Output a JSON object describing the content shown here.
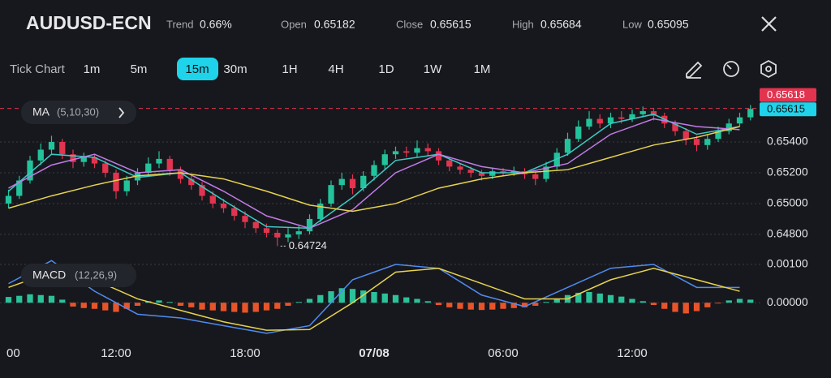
{
  "header": {
    "symbol": "AUDUSD-ECN",
    "stats": [
      {
        "label": "Trend",
        "value": "0.66%"
      },
      {
        "label": "Open",
        "value": "0.65182"
      },
      {
        "label": "Close",
        "value": "0.65615"
      },
      {
        "label": "High",
        "value": "0.65684"
      },
      {
        "label": "Low",
        "value": "0.65095"
      }
    ]
  },
  "timeframes": {
    "items": [
      "Tick Chart",
      "1m",
      "5m",
      "15m",
      "30m",
      "1H",
      "4H",
      "1D",
      "1W",
      "1M"
    ],
    "selected": 3
  },
  "chart_data": [
    {
      "type": "candlestick",
      "indicator": "MA",
      "indicator_params": "(5,10,30)",
      "up_color": "#22c39b",
      "down_color": "#e3344f",
      "x": [
        1,
        1.5,
        2,
        2.5,
        3,
        3.5,
        4,
        4.5,
        5,
        5.5,
        6,
        6.5,
        7,
        7.5,
        8,
        8.5,
        9,
        9.5,
        10,
        10.5,
        11,
        11.5,
        12,
        12.5,
        13,
        13.5,
        14,
        14.5,
        15,
        15.5,
        16,
        16.5,
        17,
        17.5,
        18,
        18.5,
        19,
        19.5,
        20,
        20.5,
        21,
        21.5,
        22,
        22.5,
        23,
        23.5,
        24,
        24.5,
        25,
        25.5,
        26,
        26.5,
        27,
        27.5,
        28,
        28.5,
        29,
        29.5,
        30,
        30.5,
        31,
        31.5,
        32,
        32.5,
        33,
        33.5,
        34,
        34.5,
        35,
        35.5
      ],
      "open": [
        0.65,
        0.6505,
        0.6515,
        0.6528,
        0.6535,
        0.654,
        0.6532,
        0.6527,
        0.653,
        0.6526,
        0.652,
        0.6508,
        0.6515,
        0.652,
        0.6526,
        0.6529,
        0.6522,
        0.6516,
        0.6512,
        0.6505,
        0.65,
        0.6497,
        0.6492,
        0.6488,
        0.6484,
        0.6481,
        0.6478,
        0.648,
        0.6482,
        0.649,
        0.65,
        0.6512,
        0.6516,
        0.651,
        0.6518,
        0.6525,
        0.6532,
        0.6534,
        0.6533,
        0.6536,
        0.6534,
        0.6528,
        0.6524,
        0.6522,
        0.652,
        0.6518,
        0.6521,
        0.652,
        0.6521,
        0.6519,
        0.6516,
        0.6524,
        0.6533,
        0.6542,
        0.655,
        0.6555,
        0.6552,
        0.6556,
        0.6555,
        0.6558,
        0.656,
        0.6557,
        0.6552,
        0.6547,
        0.6542,
        0.6538,
        0.6542,
        0.6547,
        0.6552,
        0.6556
      ],
      "high": [
        0.6509,
        0.6518,
        0.6531,
        0.6539,
        0.6544,
        0.6542,
        0.6535,
        0.6533,
        0.6532,
        0.6528,
        0.6522,
        0.6518,
        0.6523,
        0.653,
        0.6534,
        0.6531,
        0.6524,
        0.6519,
        0.6514,
        0.6508,
        0.6503,
        0.6499,
        0.6495,
        0.649,
        0.6487,
        0.6483,
        0.6484,
        0.6486,
        0.6493,
        0.6503,
        0.6515,
        0.652,
        0.6519,
        0.6521,
        0.6528,
        0.6535,
        0.6537,
        0.6537,
        0.6541,
        0.6539,
        0.6536,
        0.653,
        0.6526,
        0.6524,
        0.6522,
        0.6523,
        0.6523,
        0.6524,
        0.6523,
        0.6521,
        0.6527,
        0.6536,
        0.6546,
        0.6554,
        0.656,
        0.6558,
        0.6559,
        0.656,
        0.6561,
        0.6563,
        0.6562,
        0.6559,
        0.6554,
        0.6549,
        0.6544,
        0.6545,
        0.655,
        0.6555,
        0.6559,
        0.6564
      ],
      "low": [
        0.6497,
        0.6503,
        0.6513,
        0.6525,
        0.6532,
        0.6529,
        0.6523,
        0.6524,
        0.6523,
        0.6517,
        0.6503,
        0.6505,
        0.6512,
        0.6518,
        0.6523,
        0.6518,
        0.6513,
        0.6509,
        0.6502,
        0.6497,
        0.6494,
        0.6489,
        0.6484,
        0.6481,
        0.6478,
        0.64724,
        0.6475,
        0.6477,
        0.648,
        0.6488,
        0.6498,
        0.6509,
        0.6506,
        0.6508,
        0.6515,
        0.6522,
        0.6529,
        0.653,
        0.653,
        0.6531,
        0.6525,
        0.6521,
        0.6519,
        0.6517,
        0.6515,
        0.6516,
        0.6518,
        0.6518,
        0.6516,
        0.6512,
        0.6514,
        0.6522,
        0.6531,
        0.654,
        0.6548,
        0.6549,
        0.6549,
        0.6552,
        0.6553,
        0.6556,
        0.6554,
        0.6549,
        0.6544,
        0.6538,
        0.6534,
        0.6535,
        0.654,
        0.6545,
        0.655,
        0.6554
      ],
      "close": [
        0.6505,
        0.6515,
        0.6528,
        0.6535,
        0.654,
        0.6532,
        0.6527,
        0.653,
        0.6526,
        0.652,
        0.6508,
        0.6515,
        0.652,
        0.6526,
        0.6529,
        0.6522,
        0.6516,
        0.6512,
        0.6505,
        0.65,
        0.6497,
        0.6492,
        0.6488,
        0.6484,
        0.6481,
        0.6478,
        0.648,
        0.6482,
        0.649,
        0.65,
        0.6512,
        0.6516,
        0.651,
        0.6518,
        0.6525,
        0.6532,
        0.6534,
        0.6533,
        0.6536,
        0.6534,
        0.6528,
        0.6524,
        0.6522,
        0.652,
        0.6518,
        0.6521,
        0.652,
        0.6521,
        0.6519,
        0.6516,
        0.6524,
        0.6533,
        0.6542,
        0.655,
        0.6555,
        0.6552,
        0.6556,
        0.6555,
        0.6558,
        0.656,
        0.6557,
        0.6552,
        0.6547,
        0.6542,
        0.6538,
        0.6542,
        0.6547,
        0.6552,
        0.6556,
        0.65615
      ],
      "lines": {
        "x": [
          1,
          3,
          5,
          7,
          9,
          11,
          13,
          15,
          17,
          19,
          21,
          23,
          25,
          27,
          29,
          31,
          33,
          35
        ],
        "series": [
          {
            "color": "#3cc9c4",
            "values": [
              0.6508,
              0.6532,
              0.653,
              0.6517,
              0.652,
              0.6502,
              0.6485,
              0.6484,
              0.6504,
              0.6528,
              0.6532,
              0.652,
              0.652,
              0.6532,
              0.6552,
              0.6558,
              0.6545,
              0.655
            ]
          },
          {
            "color": "#c27be8",
            "values": [
              0.651,
              0.6525,
              0.6532,
              0.652,
              0.6522,
              0.6508,
              0.6492,
              0.6484,
              0.6496,
              0.652,
              0.6532,
              0.6524,
              0.652,
              0.6526,
              0.6545,
              0.6555,
              0.655,
              0.6548
            ]
          },
          {
            "color": "#e6d34f",
            "values": [
              0.6497,
              0.6505,
              0.6512,
              0.6518,
              0.652,
              0.6516,
              0.6508,
              0.6499,
              0.6495,
              0.65,
              0.651,
              0.6516,
              0.652,
              0.6522,
              0.653,
              0.6538,
              0.6543,
              0.655
            ]
          }
        ]
      },
      "low_marker": {
        "x": 13.5,
        "value": 0.64724
      },
      "last_price": {
        "value": 0.65615,
        "color": "#1fd3ea"
      },
      "ask_price": {
        "value": 0.65618,
        "color": "#e3344f"
      },
      "xlim": [
        0,
        36
      ],
      "ylim": [
        0.64689,
        0.65753
      ],
      "yticks": [
        {
          "value": 0.648,
          "label": "0.64800"
        },
        {
          "value": 0.65,
          "label": "0.65000"
        },
        {
          "value": 0.652,
          "label": "0.65200"
        },
        {
          "value": 0.654,
          "label": "0.65400"
        }
      ],
      "grid": true
    },
    {
      "type": "macd",
      "indicator": "MACD",
      "indicator_params": "(12,26,9)",
      "up_color": "#2bc29a",
      "down_color": "#e8542a",
      "x": [
        1,
        1.5,
        2,
        2.5,
        3,
        3.5,
        4,
        4.5,
        5,
        5.5,
        6,
        6.5,
        7,
        7.5,
        8,
        8.5,
        9,
        9.5,
        10,
        10.5,
        11,
        11.5,
        12,
        12.5,
        13,
        13.5,
        14,
        14.5,
        15,
        15.5,
        16,
        16.5,
        17,
        17.5,
        18,
        18.5,
        19,
        19.5,
        20,
        20.5,
        21,
        21.5,
        22,
        22.5,
        23,
        23.5,
        24,
        24.5,
        25,
        25.5,
        26,
        26.5,
        27,
        27.5,
        28,
        28.5,
        29,
        29.5,
        30,
        30.5,
        31,
        31.5,
        32,
        32.5,
        33,
        33.5,
        34,
        34.5,
        35,
        35.5
      ],
      "histogram": [
        0.00015,
        0.00018,
        0.00022,
        0.0002,
        0.00018,
        8e-05,
        -0.0001,
        -0.00014,
        -0.00016,
        -0.0002,
        -0.00024,
        -0.00016,
        -8e-05,
        4e-05,
        6e-05,
        2e-05,
        -8e-05,
        -0.00012,
        -0.00018,
        -0.0002,
        -0.00022,
        -0.00024,
        -0.00026,
        -0.00024,
        -0.0002,
        -0.00016,
        -8e-05,
        2e-05,
        0.0001,
        0.0002,
        0.0003,
        0.00038,
        0.00036,
        0.00032,
        0.00028,
        0.00024,
        0.0002,
        0.00014,
        0.0001,
        4e-05,
        -6e-05,
        -0.00012,
        -0.00016,
        -0.00018,
        -0.00019,
        -0.00018,
        -0.00016,
        -0.00014,
        -0.00012,
        -8e-05,
        2e-05,
        0.0001,
        0.0002,
        0.00026,
        0.00028,
        0.00024,
        0.0002,
        0.00016,
        0.0001,
        4e-05,
        -6e-05,
        -0.00016,
        -0.00024,
        -0.00028,
        -0.00022,
        -0.00012,
        -2e-05,
        6e-05,
        0.0001,
        8e-05
      ],
      "lines": {
        "x": [
          1,
          3,
          5,
          7,
          9,
          11,
          13,
          15,
          17,
          19,
          21,
          23,
          25,
          27,
          29,
          31,
          33,
          35
        ],
        "series": [
          {
            "color": "#4f8cf0",
            "values": [
              0.0005,
              0.0011,
              0.0003,
              -0.0003,
              -0.0004,
              -0.0006,
              -0.0008,
              -0.0006,
              0.0006,
              0.001,
              0.0009,
              0.0002,
              -0.0001,
              0.0004,
              0.0009,
              0.001,
              0.0004,
              0.0004
            ]
          },
          {
            "color": "#e6d34f",
            "values": [
              0.0004,
              0.0008,
              0.0006,
              0.0001,
              -0.0002,
              -0.0005,
              -0.00072,
              -0.0007,
              0,
              0.0008,
              0.0009,
              0.0005,
              0.0001,
              0.0001,
              0.0006,
              0.0009,
              0.0006,
              0.0003
            ]
          }
        ]
      },
      "xlim": [
        0,
        36
      ],
      "ylim": [
        -0.00095,
        0.00117
      ],
      "yticks": [
        {
          "value": 0,
          "label": "0.00000"
        },
        {
          "value": 0.001,
          "label": "0.00100"
        }
      ],
      "xticks": [
        {
          "value": 1,
          "label": "00"
        },
        {
          "value": 6,
          "label": "12:00"
        },
        {
          "value": 12,
          "label": "18:00"
        },
        {
          "value": 18,
          "label": "07/08"
        },
        {
          "value": 24,
          "label": "06:00"
        },
        {
          "value": 30,
          "label": "12:00"
        }
      ],
      "grid": true
    }
  ]
}
